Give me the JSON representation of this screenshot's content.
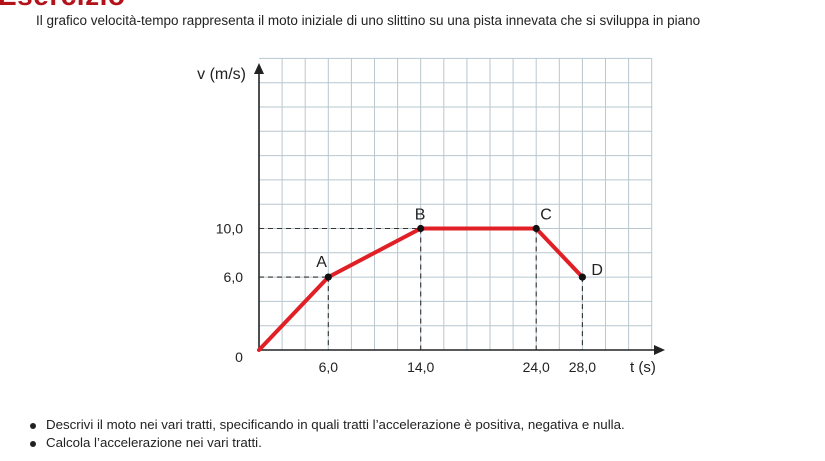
{
  "heading": "Esercizio",
  "intro": "Il grafico velocità-tempo rappresenta il moto iniziale di uno slittino su una pista innevata che si sviluppa in piano",
  "chart_data": {
    "type": "line",
    "title": "",
    "xlabel": "t (s)",
    "ylabel": "v (m/s)",
    "origin_label": "0",
    "x_ticks": [
      "6,0",
      "14,0",
      "24,0",
      "28,0"
    ],
    "y_ticks": [
      "6,0",
      "10,0"
    ],
    "x": [
      0,
      6,
      14,
      24,
      28
    ],
    "y": [
      0,
      6,
      10,
      10,
      6
    ],
    "point_labels": [
      "",
      "A",
      "B",
      "C",
      "D"
    ],
    "xlim": [
      0,
      34
    ],
    "ylim": [
      0,
      24
    ],
    "grid": true,
    "line_color": "#e11f26",
    "point_color": "#111111",
    "grid_color": "#b9c7cf"
  },
  "bullets": [
    "Descrivi il moto nei vari tratti, specificando in quali tratti l’accelerazione è positiva, negativa e nulla.",
    "Calcola l’accelerazione nei vari tratti."
  ]
}
